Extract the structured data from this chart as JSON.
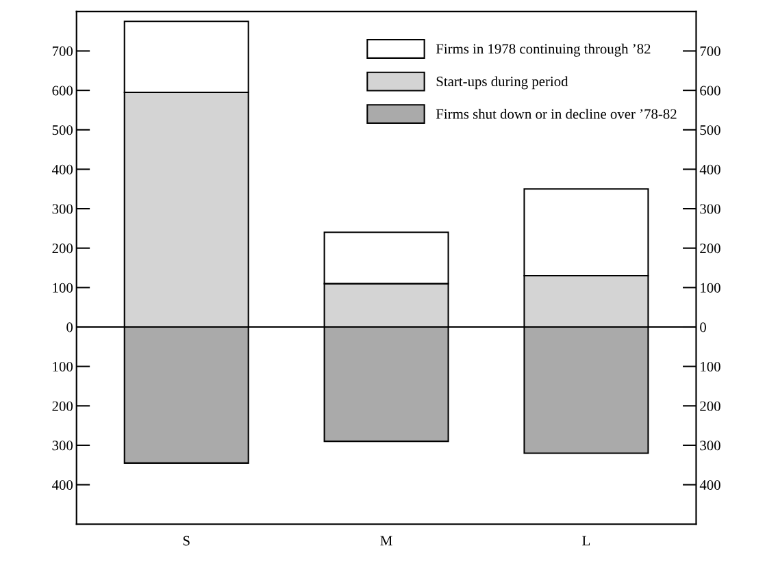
{
  "chart_data": {
    "type": "bar",
    "stacked": true,
    "categories": [
      "S",
      "M",
      "L"
    ],
    "series": [
      {
        "name": "Firms shut down or in decline over ’78-82",
        "color": "#aaaaaa",
        "values": [
          -345,
          -290,
          -320
        ]
      },
      {
        "name": "Start-ups during period",
        "color": "#d4d4d4",
        "values": [
          595,
          110,
          130
        ]
      },
      {
        "name": "Firms in 1978 continuing through ’82",
        "color": "#ffffff",
        "values": [
          180,
          130,
          220
        ]
      }
    ],
    "ylim": [
      -500,
      800
    ],
    "yticks": [
      {
        "value": -400,
        "label": "400"
      },
      {
        "value": -300,
        "label": "300"
      },
      {
        "value": -200,
        "label": "200"
      },
      {
        "value": -100,
        "label": "100"
      },
      0,
      100,
      200,
      300,
      400,
      500,
      600,
      700
    ],
    "y2lim": [
      -500,
      800
    ],
    "y2ticks": [
      {
        "value": -400,
        "label": "400"
      },
      {
        "value": -300,
        "label": "300"
      },
      {
        "value": -200,
        "label": "200"
      },
      {
        "value": -100,
        "label": "100"
      },
      0,
      100,
      200,
      300,
      400,
      500,
      600,
      700
    ],
    "ref_lines": [
      {
        "axis": "y",
        "value": 0,
        "color": "#000000"
      }
    ],
    "legend": "top right",
    "grid": false
  }
}
